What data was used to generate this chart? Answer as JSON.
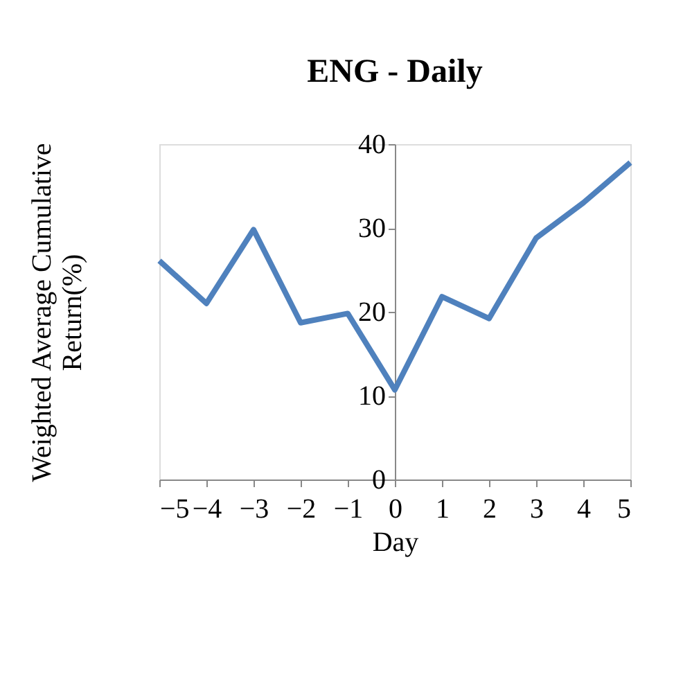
{
  "chart_data": {
    "type": "line",
    "title": "ENG - Daily",
    "xlabel": "Day",
    "ylabel": "Weighted Average Cumulative Return(%)",
    "x": [
      -5,
      -4,
      -3,
      -2,
      -1,
      0,
      1,
      2,
      3,
      4,
      5
    ],
    "series": [
      {
        "color": "#4f81bd",
        "values": [
          26.1,
          21,
          29.8,
          18.7,
          19.8,
          10.7,
          21.8,
          19.2,
          28.8,
          33,
          37.8
        ]
      }
    ],
    "xlim": [
      -5,
      5
    ],
    "xticks": [
      -5,
      -4,
      -3,
      -2,
      -1,
      0,
      1,
      2,
      3,
      4,
      5
    ],
    "ylim": [
      0,
      40
    ],
    "yticks": [
      0,
      10,
      20,
      30,
      40
    ],
    "grid": false,
    "legend": false,
    "marker": "none",
    "line_style": "solid"
  }
}
